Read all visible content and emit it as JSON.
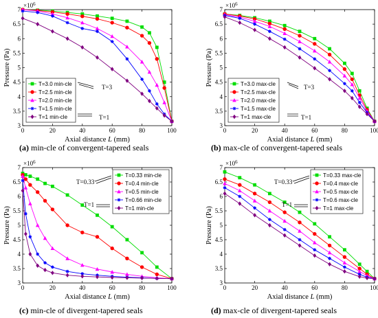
{
  "figure": {
    "panels": [
      {
        "caption_label": "(a)",
        "caption_text": " min-cle of convergent-tapered seals"
      },
      {
        "caption_label": "(b)",
        "caption_text": " max-cle of convergent-tapered seals"
      },
      {
        "caption_label": "(c)",
        "caption_text": " min-cle of divergent-tapered seals"
      },
      {
        "caption_label": "(d)",
        "caption_text": " max-cle of divergent-tapered seals"
      }
    ]
  },
  "colors": {
    "green": "#00dd00",
    "red": "#ff0000",
    "magenta": "#ff00ff",
    "blue": "#0000ff",
    "purple": "#800080"
  },
  "chart_data": [
    {
      "type": "line",
      "xlabel": "Axial distance L (mm)",
      "ylabel": "Pressure (Pa)",
      "exponent": "×10^6",
      "xlim": [
        0,
        100
      ],
      "ylim": [
        3,
        7
      ],
      "xticks": [
        "0",
        "20",
        "40",
        "60",
        "80",
        "100"
      ],
      "yticks": [
        "3",
        "3.5",
        "4",
        "4.5",
        "5",
        "5.5",
        "6",
        "6.5",
        "7"
      ],
      "legend_position": "lower-left",
      "annotations": [
        "T=3",
        "T=1"
      ],
      "x": [
        0,
        10,
        20,
        30,
        40,
        50,
        60,
        70,
        80,
        85,
        90,
        95,
        100
      ],
      "series": [
        {
          "name": "T=3.0 min-cle",
          "marker": "square",
          "color": "green",
          "values": [
            7.0,
            6.98,
            6.95,
            6.9,
            6.85,
            6.78,
            6.7,
            6.6,
            6.4,
            6.2,
            5.7,
            4.5,
            3.15
          ]
        },
        {
          "name": "T=2.5 min-cle",
          "marker": "circle",
          "color": "red",
          "values": [
            7.0,
            6.97,
            6.92,
            6.85,
            6.77,
            6.68,
            6.55,
            6.38,
            6.1,
            5.85,
            5.3,
            4.3,
            3.15
          ]
        },
        {
          "name": "T=2.0 min-cle",
          "marker": "triangle",
          "color": "magenta",
          "values": [
            7.0,
            6.95,
            6.85,
            6.72,
            6.55,
            6.35,
            6.08,
            5.72,
            5.2,
            4.85,
            4.4,
            3.8,
            3.15
          ]
        },
        {
          "name": "T=1.5 min-cle",
          "marker": "star",
          "color": "blue",
          "values": [
            6.95,
            6.9,
            6.78,
            6.55,
            6.35,
            6.25,
            5.9,
            5.3,
            4.6,
            4.2,
            3.75,
            3.4,
            3.15
          ]
        },
        {
          "name": "T=1 min-cle",
          "marker": "diamond",
          "color": "purple",
          "values": [
            6.7,
            6.5,
            6.25,
            6.0,
            5.7,
            5.35,
            4.95,
            4.55,
            4.1,
            3.85,
            3.6,
            3.35,
            3.15
          ]
        }
      ]
    },
    {
      "type": "line",
      "xlabel": "Axial distance L (mm)",
      "ylabel": "Pressure (Pa)",
      "exponent": "×10^6",
      "xlim": [
        0,
        100
      ],
      "ylim": [
        3,
        7
      ],
      "xticks": [
        "0",
        "20",
        "40",
        "60",
        "80",
        "100"
      ],
      "yticks": [
        "3",
        "3.5",
        "4",
        "4.5",
        "5",
        "5.5",
        "6",
        "6.5",
        "7"
      ],
      "legend_position": "lower-left",
      "annotations": [
        "T=3",
        "T=1"
      ],
      "x": [
        0,
        10,
        20,
        30,
        40,
        50,
        60,
        70,
        80,
        85,
        90,
        95,
        100
      ],
      "series": [
        {
          "name": "T=3.0 max-cle",
          "marker": "square",
          "color": "green",
          "values": [
            6.85,
            6.8,
            6.72,
            6.6,
            6.45,
            6.25,
            6.0,
            5.65,
            5.15,
            4.8,
            4.2,
            3.6,
            3.15
          ]
        },
        {
          "name": "T=2.5 max-cle",
          "marker": "circle",
          "color": "red",
          "values": [
            6.85,
            6.78,
            6.68,
            6.52,
            6.33,
            6.1,
            5.82,
            5.45,
            4.95,
            4.6,
            4.05,
            3.55,
            3.15
          ]
        },
        {
          "name": "T=2.0 max-cle",
          "marker": "triangle",
          "color": "magenta",
          "values": [
            6.83,
            6.74,
            6.6,
            6.42,
            6.18,
            5.9,
            5.58,
            5.2,
            4.72,
            4.42,
            3.95,
            3.5,
            3.15
          ]
        },
        {
          "name": "T=1.5 max-cle",
          "marker": "star",
          "color": "blue",
          "values": [
            6.8,
            6.7,
            6.5,
            6.25,
            5.98,
            5.65,
            5.3,
            4.9,
            4.45,
            4.2,
            3.8,
            3.45,
            3.15
          ]
        },
        {
          "name": "T=1 max-cle",
          "marker": "diamond",
          "color": "purple",
          "values": [
            6.75,
            6.55,
            6.3,
            6.0,
            5.7,
            5.35,
            4.98,
            4.6,
            4.2,
            3.95,
            3.65,
            3.4,
            3.15
          ]
        }
      ]
    },
    {
      "type": "line",
      "xlabel": "Axial distance L (mm)",
      "ylabel": "Pressure (Pa)",
      "exponent": "×10^6",
      "xlim": [
        0,
        100
      ],
      "ylim": [
        3,
        7
      ],
      "xticks": [
        "0",
        "20",
        "40",
        "60",
        "80",
        "100"
      ],
      "yticks": [
        "3",
        "3.5",
        "4",
        "4.5",
        "5",
        "5.5",
        "6",
        "6.5",
        "7"
      ],
      "legend_position": "top-right",
      "annotations": [
        "T=0.33",
        "T=1"
      ],
      "x": [
        0,
        2,
        5,
        10,
        15,
        20,
        30,
        40,
        50,
        60,
        70,
        80,
        90,
        100
      ],
      "series": [
        {
          "name": "T=0.33 min-cle",
          "marker": "square",
          "color": "green",
          "values": [
            6.8,
            6.75,
            6.7,
            6.6,
            6.45,
            6.35,
            6.05,
            5.7,
            5.35,
            4.95,
            4.5,
            4.05,
            3.55,
            3.15
          ]
        },
        {
          "name": "T=0.4 min-cle",
          "marker": "circle",
          "color": "red",
          "values": [
            6.75,
            6.6,
            6.4,
            6.15,
            5.85,
            5.55,
            5.0,
            4.75,
            4.6,
            4.2,
            3.85,
            3.55,
            3.3,
            3.15
          ]
        },
        {
          "name": "T=0.5 min-cle",
          "marker": "triangle",
          "color": "magenta",
          "values": [
            6.7,
            6.3,
            5.75,
            5.0,
            4.55,
            4.2,
            3.85,
            3.62,
            3.48,
            3.38,
            3.3,
            3.23,
            3.18,
            3.15
          ]
        },
        {
          "name": "T=0.66 min-cle",
          "marker": "star",
          "color": "blue",
          "values": [
            6.55,
            5.4,
            4.6,
            4.0,
            3.7,
            3.55,
            3.4,
            3.32,
            3.27,
            3.23,
            3.2,
            3.18,
            3.16,
            3.15
          ]
        },
        {
          "name": "T=1 min-cle",
          "marker": "diamond",
          "color": "purple",
          "values": [
            6.2,
            4.7,
            4.0,
            3.6,
            3.45,
            3.35,
            3.27,
            3.23,
            3.21,
            3.19,
            3.18,
            3.17,
            3.16,
            3.15
          ]
        }
      ]
    },
    {
      "type": "line",
      "xlabel": "Axial distance L (mm)",
      "ylabel": "Pressure (Pa)",
      "exponent": "×10^6",
      "xlim": [
        0,
        100
      ],
      "ylim": [
        3,
        7
      ],
      "xticks": [
        "0",
        "20",
        "40",
        "60",
        "80",
        "100"
      ],
      "yticks": [
        "3",
        "3.5",
        "4",
        "4.5",
        "5",
        "5.5",
        "6",
        "6.5",
        "7"
      ],
      "legend_position": "top-right",
      "annotations": [
        "T=0.33",
        "T=1"
      ],
      "x": [
        0,
        10,
        20,
        30,
        40,
        50,
        60,
        70,
        80,
        90,
        95,
        100
      ],
      "series": [
        {
          "name": "T=0.33 max-cle",
          "marker": "square",
          "color": "green",
          "values": [
            6.85,
            6.65,
            6.4,
            6.1,
            5.8,
            5.45,
            5.05,
            4.6,
            4.15,
            3.65,
            3.4,
            3.15
          ]
        },
        {
          "name": "T=0.4 max-cle",
          "marker": "circle",
          "color": "red",
          "values": [
            6.6,
            6.4,
            6.1,
            5.8,
            5.45,
            5.1,
            4.7,
            4.3,
            3.9,
            3.5,
            3.3,
            3.15
          ]
        },
        {
          "name": "T=0.5 max-cle",
          "marker": "triangle",
          "color": "magenta",
          "values": [
            6.45,
            6.2,
            5.85,
            5.5,
            5.15,
            4.8,
            4.4,
            4.05,
            3.7,
            3.4,
            3.25,
            3.15
          ]
        },
        {
          "name": "T=0.6 max-cle",
          "marker": "star",
          "color": "blue",
          "values": [
            6.3,
            6.0,
            5.6,
            5.2,
            4.85,
            4.5,
            4.15,
            3.85,
            3.55,
            3.3,
            3.2,
            3.15
          ]
        },
        {
          "name": "T=1 max-cle",
          "marker": "diamond",
          "color": "purple",
          "values": [
            6.1,
            5.75,
            5.35,
            5.0,
            4.65,
            4.3,
            3.95,
            3.65,
            3.4,
            3.22,
            3.17,
            3.15
          ]
        }
      ]
    }
  ]
}
